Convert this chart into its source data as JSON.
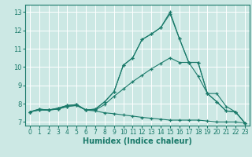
{
  "xlabel": "Humidex (Indice chaleur)",
  "background_color": "#cce8e4",
  "grid_color": "#ffffff",
  "line_color": "#1a7a6a",
  "xlim": [
    -0.5,
    23.5
  ],
  "ylim": [
    6.8,
    13.4
  ],
  "yticks": [
    7,
    8,
    9,
    10,
    11,
    12,
    13
  ],
  "xticks": [
    0,
    1,
    2,
    3,
    4,
    5,
    6,
    7,
    8,
    9,
    10,
    11,
    12,
    13,
    14,
    15,
    16,
    17,
    18,
    19,
    20,
    21,
    22,
    23
  ],
  "lines": [
    {
      "x": [
        0,
        1,
        2,
        3,
        4,
        5,
        6,
        7,
        8,
        9,
        10,
        11,
        12,
        13,
        14,
        15,
        16,
        17,
        18,
        19,
        20,
        21,
        22,
        23
      ],
      "y": [
        7.55,
        7.7,
        7.65,
        7.75,
        7.9,
        7.95,
        7.65,
        7.7,
        8.1,
        8.65,
        10.1,
        10.5,
        11.5,
        11.8,
        12.15,
        12.9,
        11.55,
        10.25,
        9.5,
        8.55,
        8.1,
        7.6,
        7.55,
        6.95
      ]
    },
    {
      "x": [
        0,
        1,
        2,
        3,
        4,
        5,
        6,
        7,
        8,
        9,
        10,
        11,
        12,
        13,
        14,
        15,
        16,
        17,
        18,
        19,
        20,
        21,
        22,
        23
      ],
      "y": [
        7.55,
        7.7,
        7.65,
        7.75,
        7.9,
        7.95,
        7.65,
        7.7,
        8.1,
        8.65,
        10.1,
        10.5,
        11.5,
        11.8,
        12.15,
        13.0,
        11.55,
        10.25,
        10.25,
        8.55,
        8.1,
        7.6,
        7.55,
        6.95
      ]
    },
    {
      "x": [
        0,
        1,
        2,
        3,
        4,
        5,
        6,
        7,
        8,
        9,
        10,
        11,
        12,
        13,
        14,
        15,
        16,
        17,
        18,
        19,
        20,
        21,
        22,
        23
      ],
      "y": [
        7.55,
        7.65,
        7.65,
        7.7,
        7.85,
        7.9,
        7.65,
        7.65,
        7.95,
        8.4,
        8.8,
        9.2,
        9.55,
        9.9,
        10.2,
        10.5,
        10.25,
        10.25,
        10.25,
        8.55,
        8.55,
        7.85,
        7.55,
        6.95
      ]
    },
    {
      "x": [
        0,
        1,
        2,
        3,
        4,
        5,
        6,
        7,
        8,
        9,
        10,
        11,
        12,
        13,
        14,
        15,
        16,
        17,
        18,
        19,
        20,
        21,
        22,
        23
      ],
      "y": [
        7.55,
        7.65,
        7.65,
        7.7,
        7.85,
        7.9,
        7.65,
        7.6,
        7.5,
        7.45,
        7.38,
        7.32,
        7.25,
        7.2,
        7.15,
        7.1,
        7.1,
        7.1,
        7.1,
        7.05,
        7.0,
        7.0,
        7.0,
        6.95
      ]
    }
  ]
}
